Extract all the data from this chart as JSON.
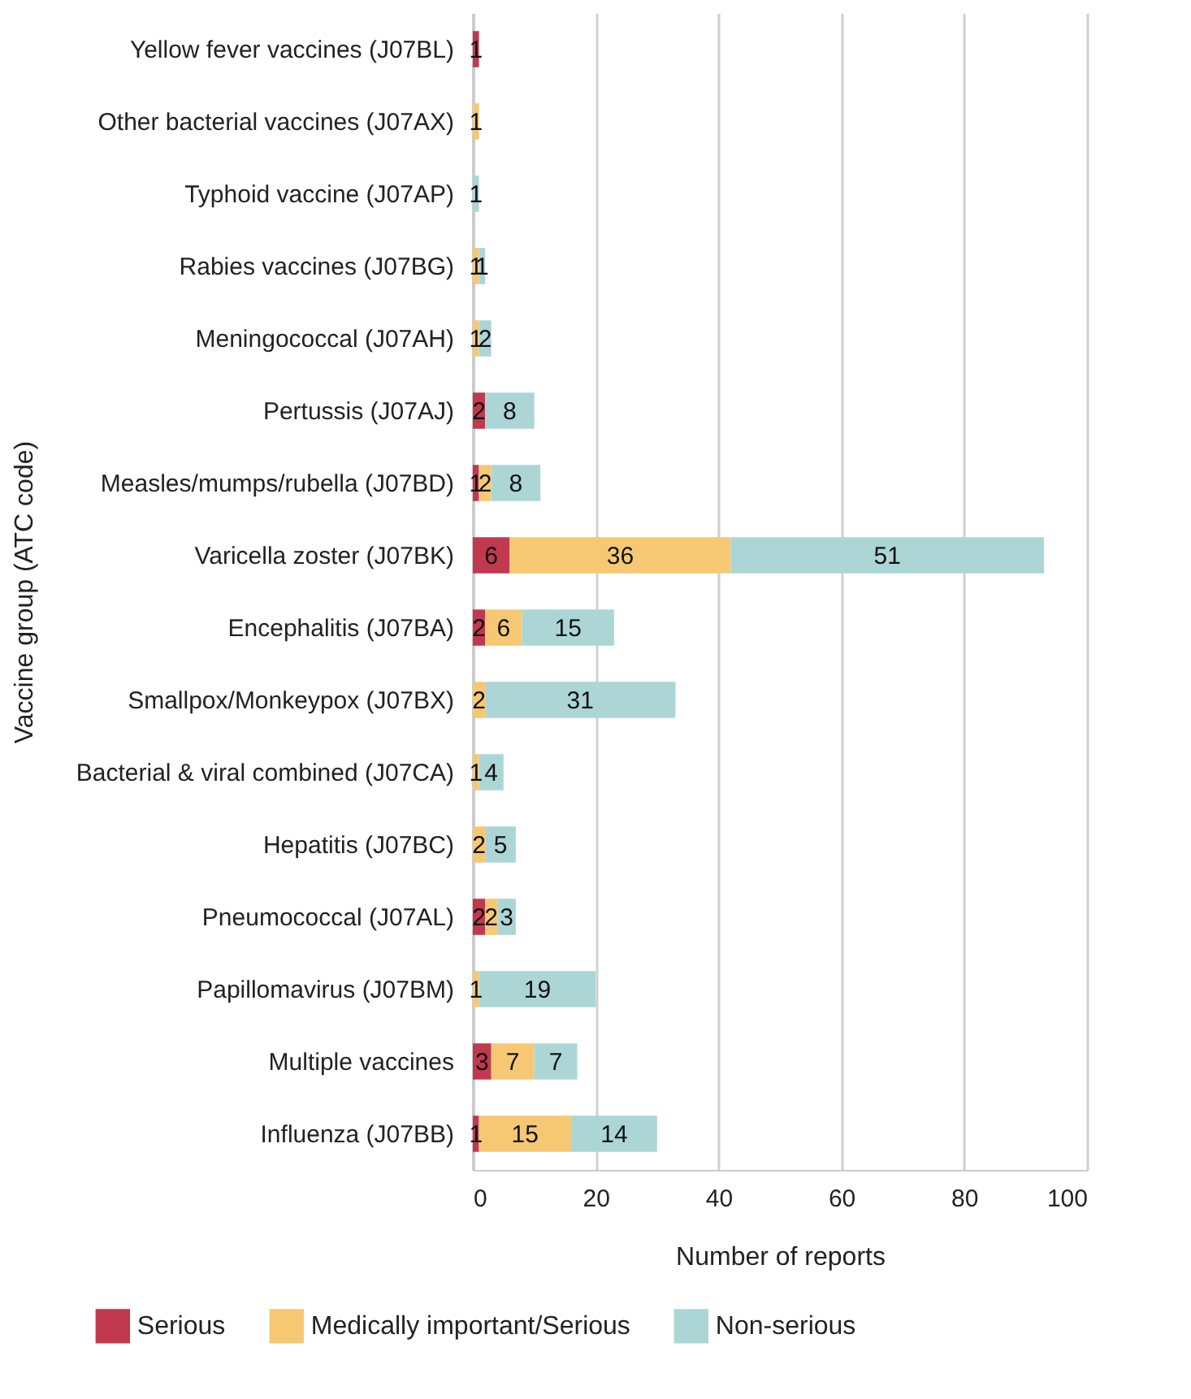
{
  "chart_data": {
    "type": "bar",
    "orientation": "horizontal",
    "stacked": true,
    "data_labels": true,
    "grid": "x",
    "legend": "bottom",
    "xlabel": "Number of reports",
    "ylabel": "Vaccine group (ATC code)",
    "categories": [
      "Yellow fever vaccines (J07BL)",
      "Other bacterial vaccines (J07AX)",
      "Typhoid vaccine (J07AP)",
      "Rabies vaccines (J07BG)",
      "Meningococcal (J07AH)",
      "Pertussis (J07AJ)",
      "Measles/mumps/rubella (J07BD)",
      "Varicella zoster (J07BK)",
      "Encephalitis (J07BA)",
      "Smallpox/Monkeypox (J07BX)",
      "Bacterial & viral combined (J07CA)",
      "Hepatitis (J07BC)",
      "Pneumococcal (J07AL)",
      "Papillomavirus (J07BM)",
      "Multiple vaccines",
      "Influenza (J07BB)"
    ],
    "xlim": [
      0,
      100
    ],
    "xticks": [
      0,
      20,
      40,
      60,
      80,
      100
    ],
    "series": [
      {
        "name": "Serious",
        "color": "#c0394f",
        "values": [
          1,
          null,
          null,
          null,
          null,
          2,
          1,
          6,
          2,
          null,
          null,
          null,
          2,
          null,
          3,
          1
        ]
      },
      {
        "name": "Medically important/Serious",
        "color": "#f6c874",
        "values": [
          null,
          1,
          null,
          1,
          1,
          null,
          2,
          36,
          6,
          2,
          1,
          2,
          2,
          1,
          7,
          15
        ]
      },
      {
        "name": "Non-serious",
        "color": "#acd6d6",
        "values": [
          null,
          null,
          1,
          1,
          2,
          8,
          8,
          51,
          15,
          31,
          4,
          5,
          3,
          19,
          7,
          14
        ]
      }
    ]
  }
}
